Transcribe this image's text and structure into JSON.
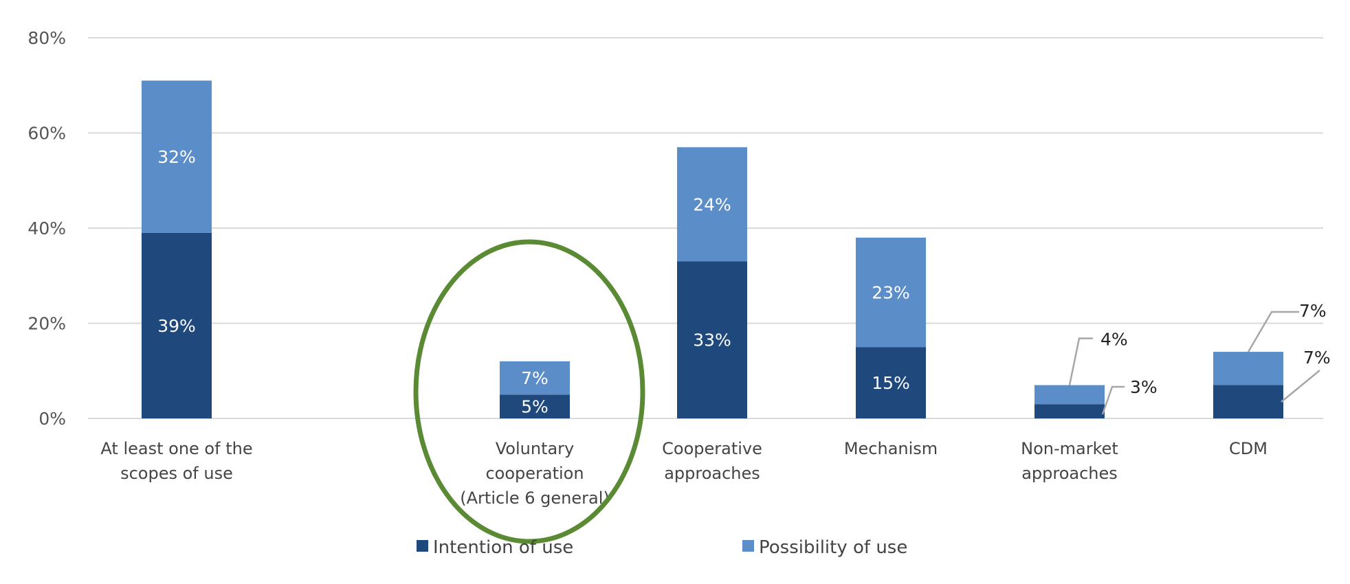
{
  "chart_data": {
    "type": "bar",
    "stacked": true,
    "title": "",
    "xlabel": "",
    "ylabel": "",
    "ylim": [
      0,
      80
    ],
    "y_ticks": [
      "0%",
      "20%",
      "40%",
      "60%",
      "80%"
    ],
    "grid": true,
    "legend_position": "bottom",
    "categories": [
      [
        "At least one of the",
        "scopes of use"
      ],
      [
        "Voluntary",
        "cooperation",
        "(Article 6 general)"
      ],
      [
        "Cooperative",
        "approaches"
      ],
      [
        "Mechanism"
      ],
      [
        "Non-market",
        "approaches"
      ],
      [
        "CDM"
      ]
    ],
    "series": [
      {
        "name": "Intention of use",
        "color": "#1f497d",
        "values": [
          39,
          5,
          33,
          15,
          3,
          7
        ],
        "labels": [
          "39%",
          "5%",
          "33%",
          "15%",
          "3%",
          "7%"
        ]
      },
      {
        "name": "Possibility of use",
        "color": "#5b8ec9",
        "values": [
          32,
          7,
          24,
          23,
          4,
          7
        ],
        "labels": [
          "32%",
          "7%",
          "24%",
          "23%",
          "4%",
          "7%"
        ]
      }
    ],
    "annotation": {
      "type": "ellipse",
      "target_category_index": 1,
      "color": "#5a8a33"
    }
  }
}
